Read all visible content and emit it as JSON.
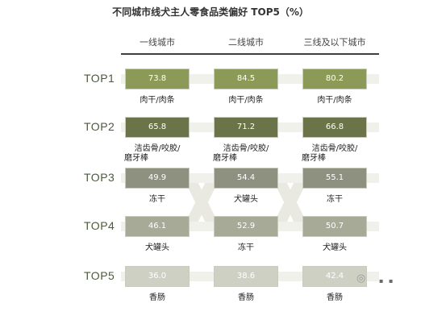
{
  "chart_data": {
    "type": "table",
    "title": "不同城市线犬主人零食品类偏好 TOP5（%）",
    "columns": [
      "一线城市",
      "二线城市",
      "三线及以下城市"
    ],
    "rows": [
      {
        "rank": "TOP1",
        "cells": [
          {
            "item": "肉干/肉条",
            "value": "73.8"
          },
          {
            "item": "肉干/肉条",
            "value": "84.5"
          },
          {
            "item": "肉干/肉条",
            "value": "80.2"
          }
        ]
      },
      {
        "rank": "TOP2",
        "cells": [
          {
            "item": "洁齿骨/咬胶/磨牙棒",
            "value": "65.8"
          },
          {
            "item": "洁齿骨/咬胶/磨牙棒",
            "value": "71.2"
          },
          {
            "item": "洁齿骨/咬胶/磨牙棒",
            "value": "66.8"
          }
        ]
      },
      {
        "rank": "TOP3",
        "cells": [
          {
            "item": "冻干",
            "value": "49.9"
          },
          {
            "item": "犬罐头",
            "value": "54.4"
          },
          {
            "item": "冻干",
            "value": "55.1"
          }
        ]
      },
      {
        "rank": "TOP4",
        "cells": [
          {
            "item": "犬罐头",
            "value": "46.1"
          },
          {
            "item": "冻干",
            "value": "52.9"
          },
          {
            "item": "犬罐头",
            "value": "50.7"
          }
        ]
      },
      {
        "rank": "TOP5",
        "cells": [
          {
            "item": "香肠",
            "value": "36.0"
          },
          {
            "item": "香肠",
            "value": "38.6"
          },
          {
            "item": "香肠",
            "value": "42.4"
          }
        ]
      }
    ],
    "rank_colors": [
      "#8c9a57",
      "#6b7448",
      "#8e9180",
      "#a8aa98",
      "#cfd0c4"
    ]
  }
}
